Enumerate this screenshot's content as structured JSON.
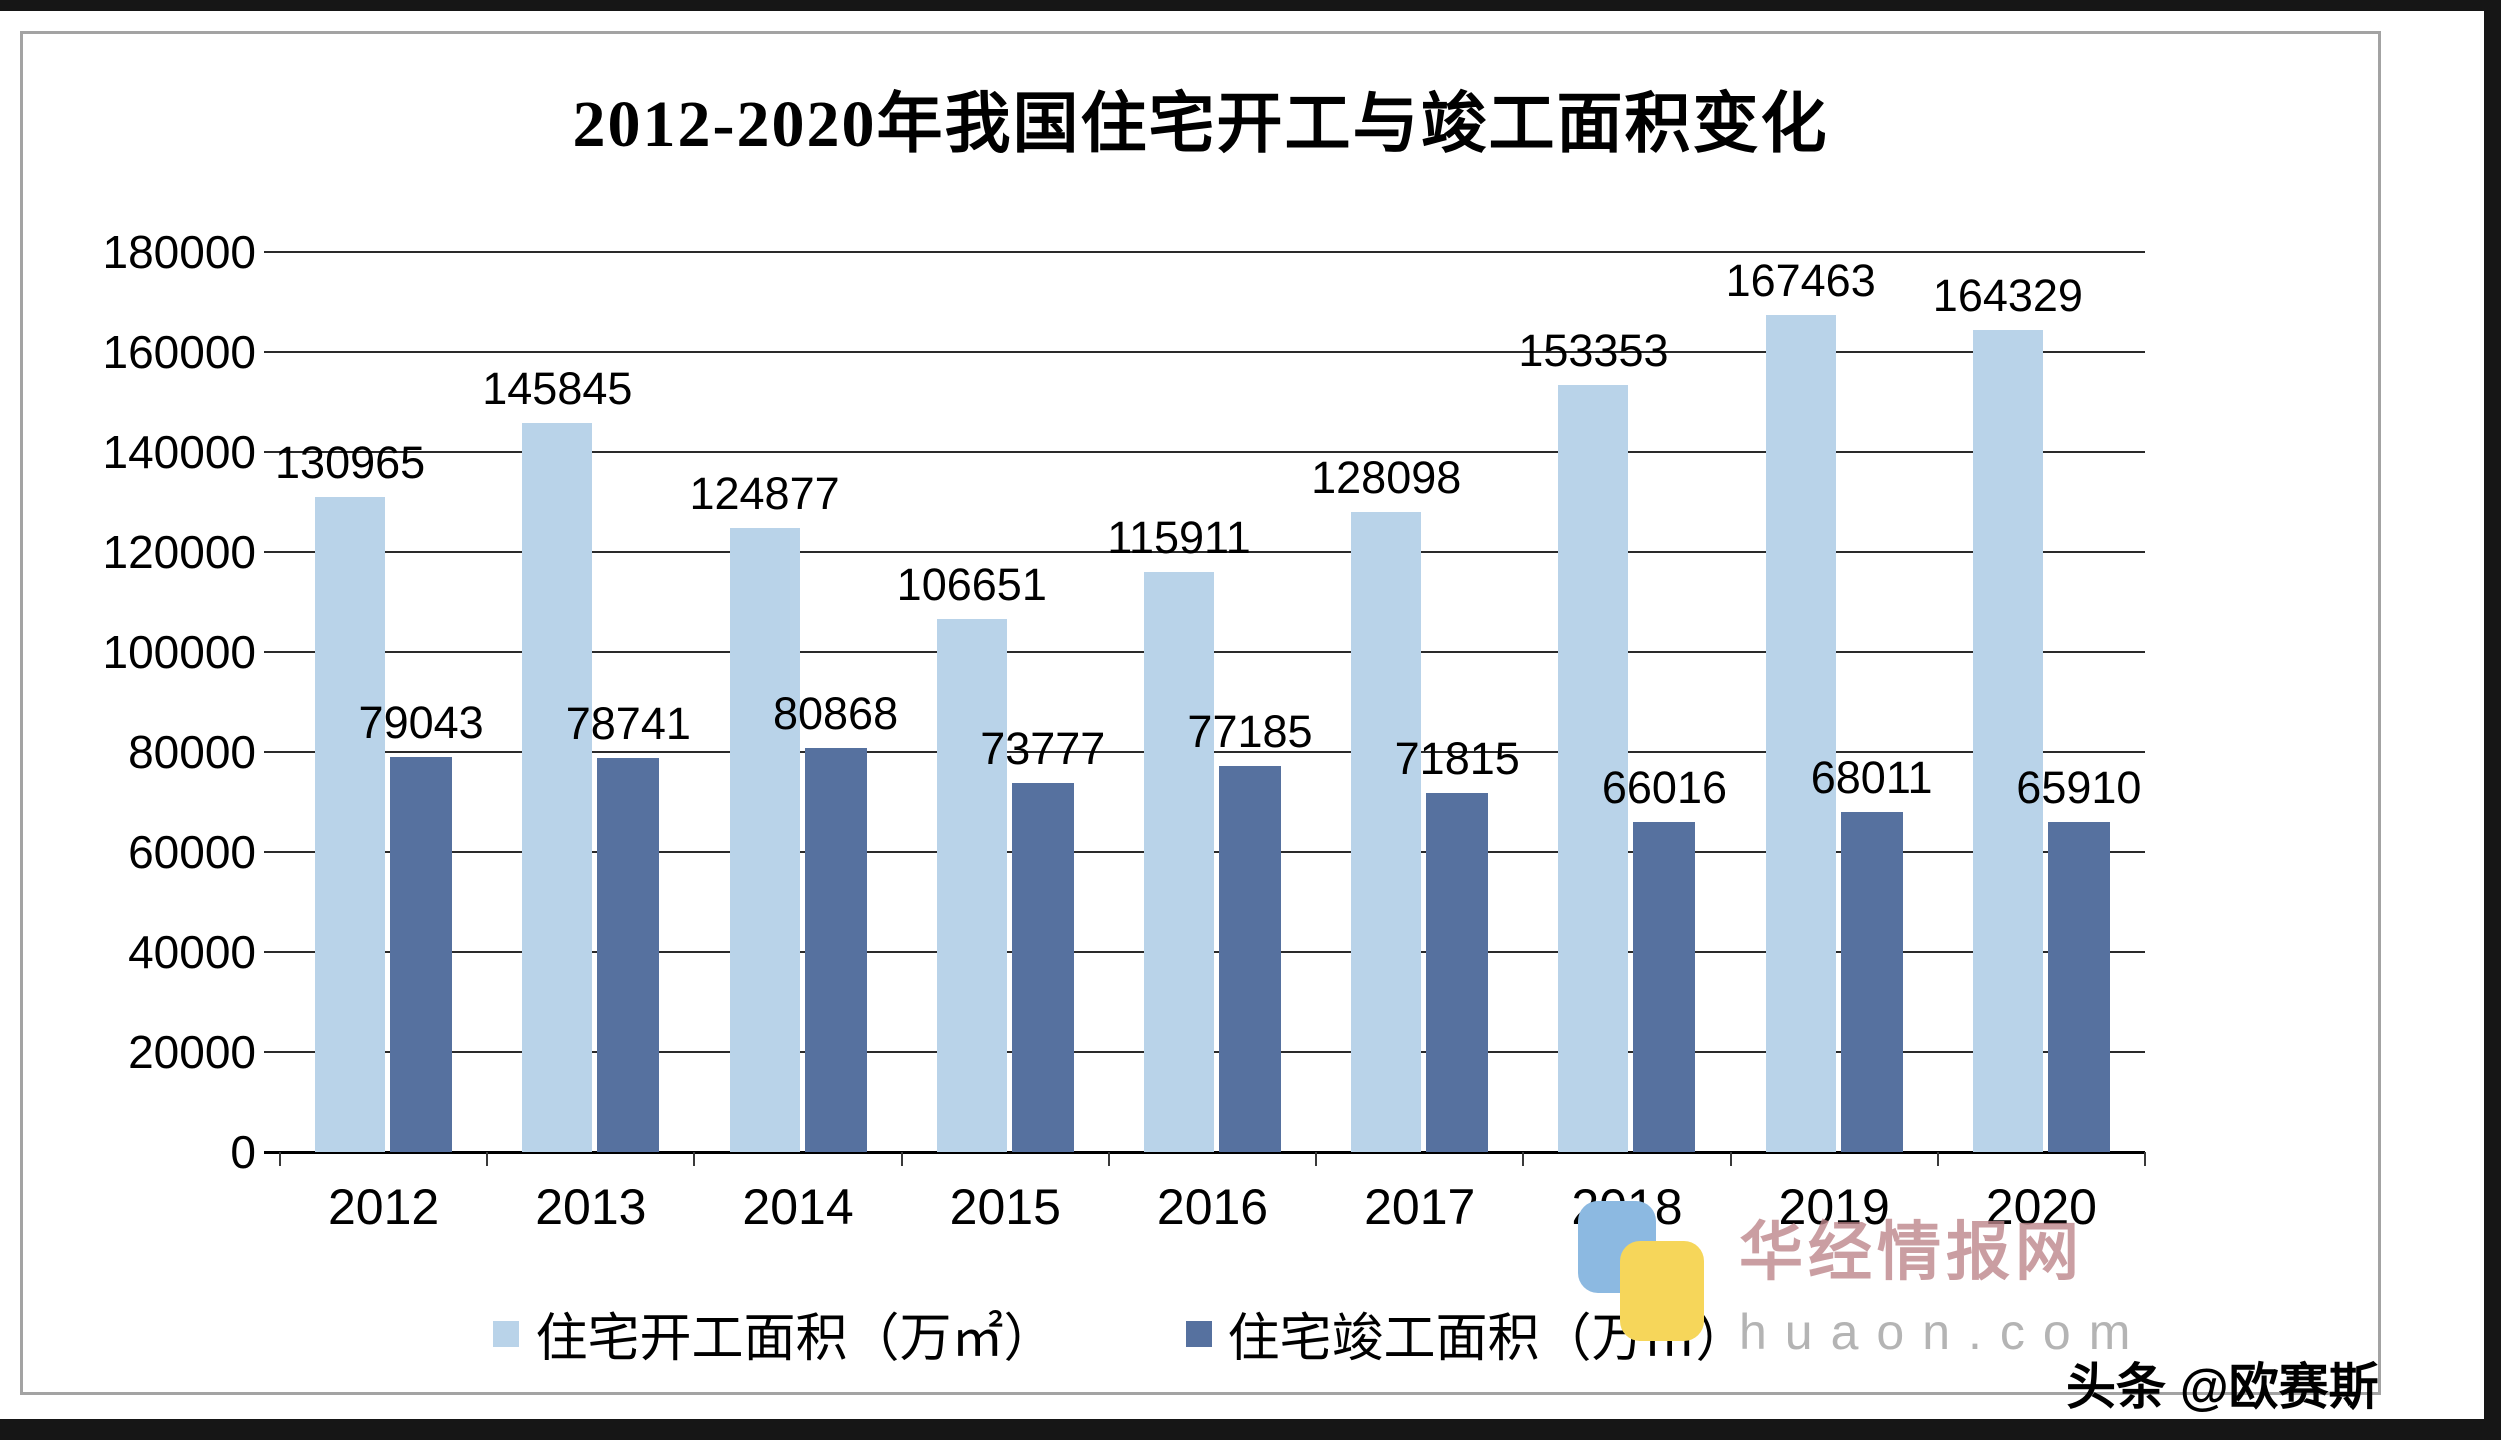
{
  "attribution": "头条 @欧赛斯",
  "watermark": {
    "cn": "华经情报网",
    "en": "huaon.com",
    "logo_colors": [
      "#8cb9e1",
      "#f6d65a"
    ]
  },
  "chart_data": {
    "type": "bar",
    "title": "2012-2020年我国住宅开工与竣工面积变化",
    "categories": [
      "2012",
      "2013",
      "2014",
      "2015",
      "2016",
      "2017",
      "2018",
      "2019",
      "2020"
    ],
    "series": [
      {
        "name": "住宅开工面积（万㎡）",
        "color": "#b9d3e9",
        "values": [
          130965,
          145845,
          124877,
          106651,
          115911,
          128098,
          153353,
          167463,
          164329
        ]
      },
      {
        "name": "住宅竣工面积（万㎡）",
        "color": "#56719f",
        "values": [
          79043,
          78741,
          80868,
          73777,
          77185,
          71815,
          66016,
          68011,
          65910
        ]
      }
    ],
    "xlabel": "",
    "ylabel": "",
    "ylim": [
      0,
      180000
    ],
    "yticks": [
      0,
      20000,
      40000,
      60000,
      80000,
      100000,
      120000,
      140000,
      160000,
      180000
    ],
    "grid": true,
    "legend_position": "bottom"
  }
}
